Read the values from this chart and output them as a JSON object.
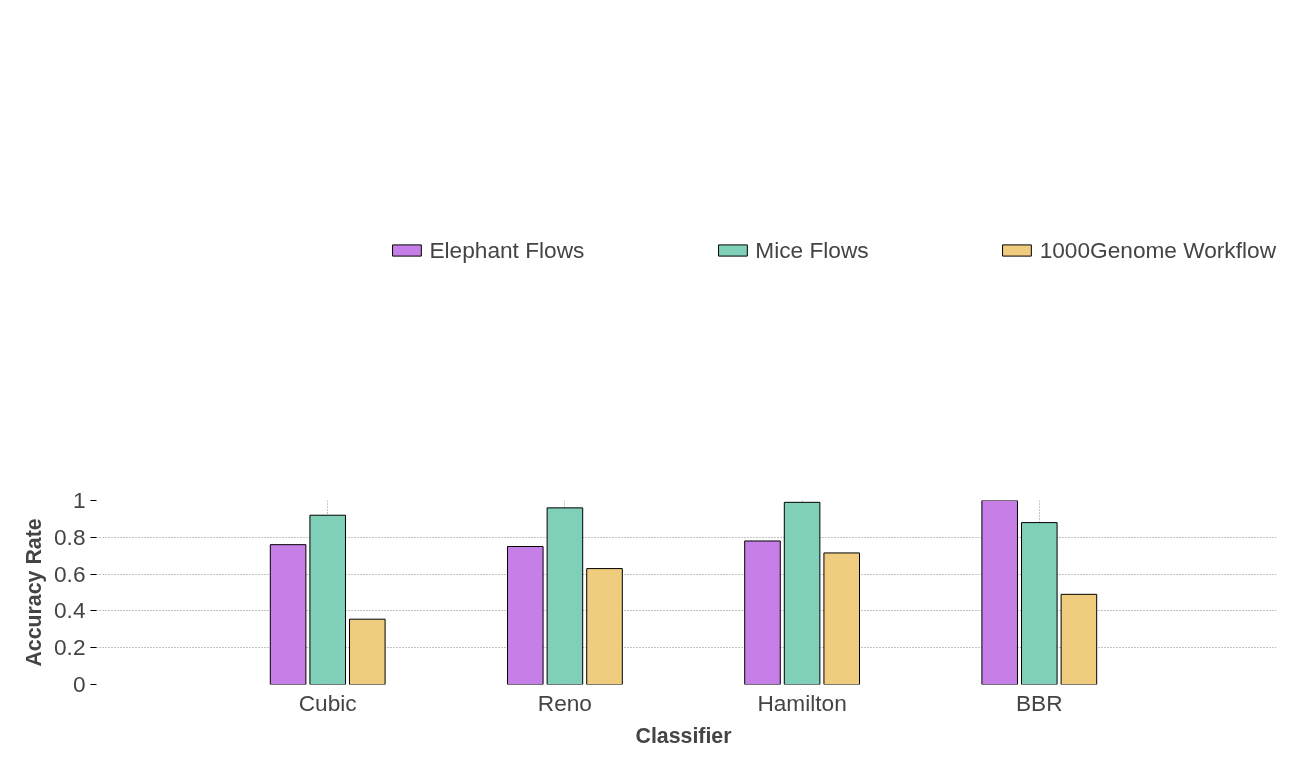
{
  "chart_data": {
    "type": "bar",
    "xlabel": "Classifier",
    "ylabel": "Accuracy Rate",
    "categories": [
      "Cubic",
      "Reno",
      "Hamilton",
      "BBR"
    ],
    "series": [
      {
        "name": "Elephant Flows",
        "color": "#c77fe8",
        "values": [
          0.76,
          0.75,
          0.78,
          1.0
        ]
      },
      {
        "name": "Mice Flows",
        "color": "#7fcfb9",
        "values": [
          0.92,
          0.96,
          0.99,
          0.88
        ]
      },
      {
        "name": "1000Genome Workflow",
        "color": "#f0cd7e",
        "values": [
          0.355,
          0.63,
          0.715,
          0.49
        ]
      }
    ],
    "ylim": [
      0,
      1
    ],
    "yticks": [
      0,
      0.2,
      0.4,
      0.6,
      0.8,
      1
    ],
    "grid": true,
    "legend": "top"
  }
}
